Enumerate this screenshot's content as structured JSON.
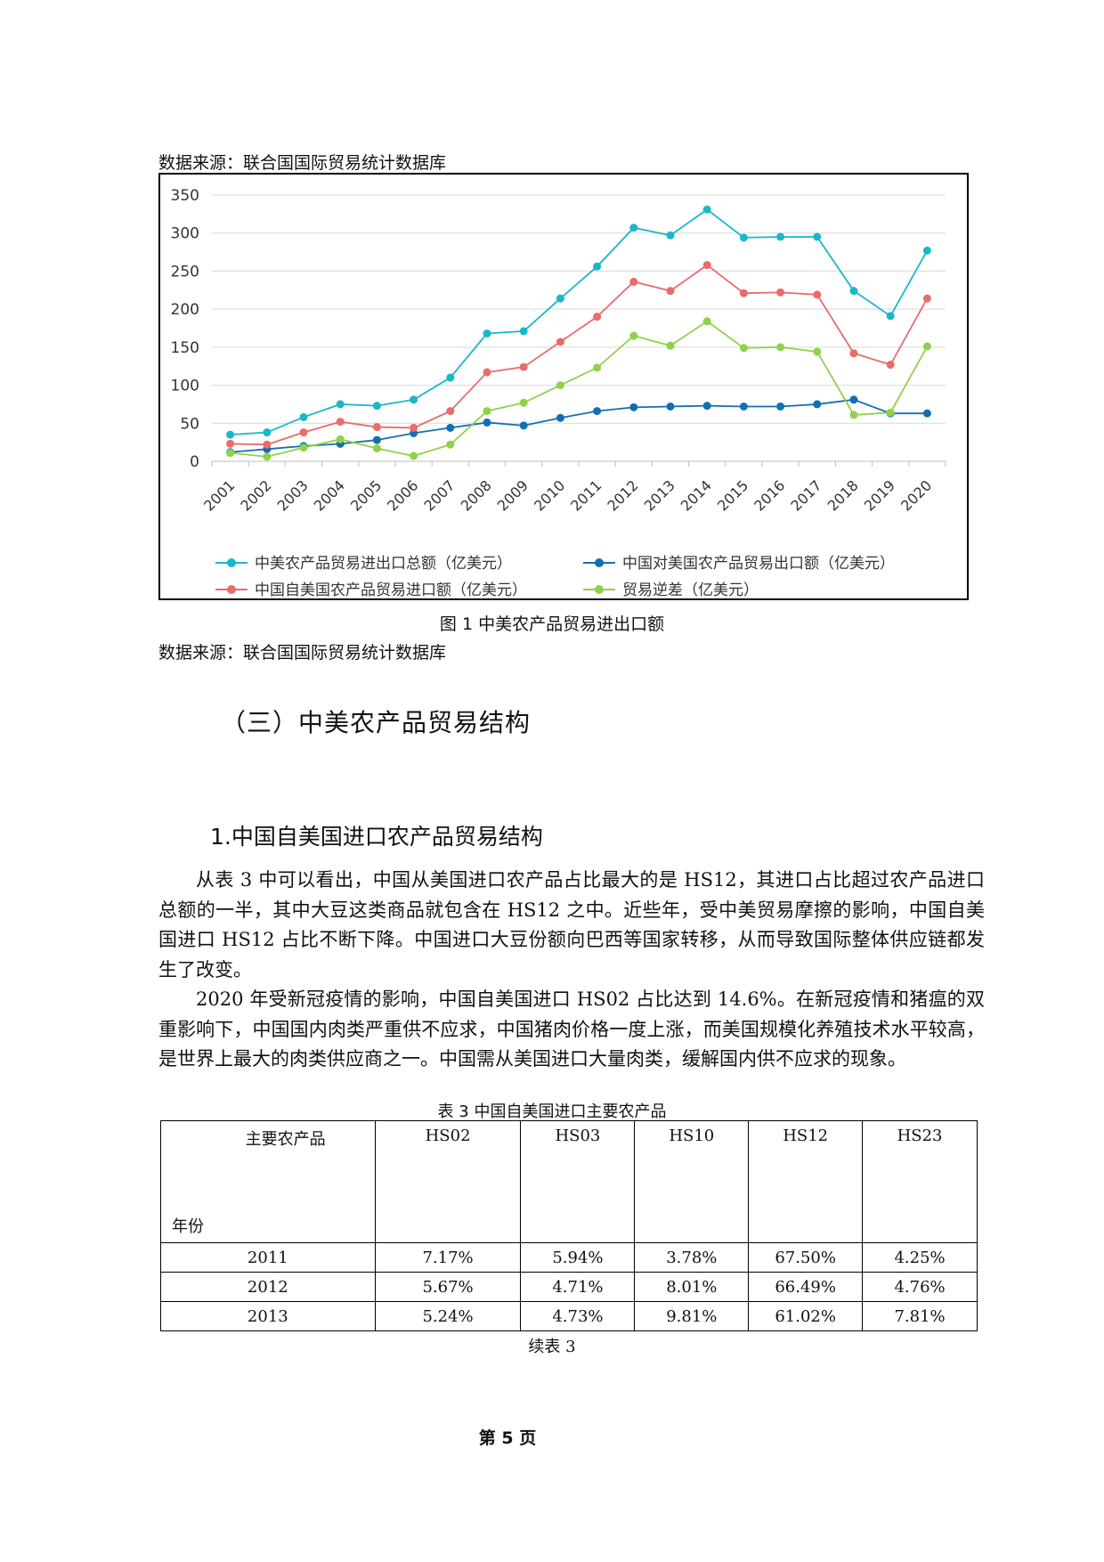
{
  "source_top": "数据来源：联合国国际贸易统计数据库",
  "figure_caption": "图 1 中美农产品贸易进出口额",
  "source_bottom": "数据来源：联合国国际贸易统计数据库",
  "section_heading": "（三）中美农产品贸易结构",
  "subsection_heading": "1.中国自美国进口农产品贸易结构",
  "paragraphs": [
    "从表 3 中可以看出，中国从美国进口农产品占比最大的是 HS12，其进口占比超过农产品进口总额的一半，其中大豆这类商品就包含在 HS12 之中。近些年，受中美贸易摩擦的影响，中国自美国进口 HS12 占比不断下降。中国进口大豆份额向巴西等国家转移，从而导致国际整体供应链都发生了改变。",
    "2020 年受新冠疫情的影响，中国自美国进口 HS02 占比达到 14.6%。在新冠疫情和猪瘟的双重影响下，中国国内肉类严重供不应求，中国猪肉价格一度上涨，而美国规模化养殖技术水平较高，是世界上最大的肉类供应商之一。中国需从美国进口大量肉类，缓解国内供不应求的现象。"
  ],
  "table_caption": "表 3 中国自美国进口主要农产品",
  "table": {
    "header_top": "主要农产品",
    "header_bottom": "年份",
    "columns": [
      "HS02",
      "HS03",
      "HS10",
      "HS12",
      "HS23"
    ],
    "rows": [
      {
        "year": "2011",
        "values": [
          "7.17%",
          "5.94%",
          "3.78%",
          "67.50%",
          "4.25%"
        ]
      },
      {
        "year": "2012",
        "values": [
          "5.67%",
          "4.71%",
          "8.01%",
          "66.49%",
          "4.76%"
        ]
      },
      {
        "year": "2013",
        "values": [
          "5.24%",
          "4.73%",
          "9.81%",
          "61.02%",
          "7.81%"
        ]
      }
    ]
  },
  "table_continued": "续表 3",
  "page_number": "第 5 页",
  "chart_data": {
    "type": "line",
    "x": [
      "2001",
      "2002",
      "2003",
      "2004",
      "2005",
      "2006",
      "2007",
      "2008",
      "2009",
      "2010",
      "2011",
      "2012",
      "2013",
      "2014",
      "2015",
      "2016",
      "2017",
      "2018",
      "2019",
      "2020"
    ],
    "ylim": [
      0,
      350
    ],
    "yticks": [
      "0",
      "50",
      "100",
      "150",
      "200",
      "250",
      "300",
      "350"
    ],
    "grid": true,
    "legend_position": "bottom",
    "series": [
      {
        "name": "中美农产品贸易进出口总额（亿美元）",
        "color": "#1ab7c9",
        "values": [
          35,
          38,
          58,
          75,
          73,
          81,
          110,
          168,
          171,
          214,
          256,
          307,
          297,
          331,
          294,
          295,
          295,
          224,
          191,
          277
        ]
      },
      {
        "name": "中国对美国农产品贸易出口额（亿美元）",
        "color": "#1170b0",
        "values": [
          12,
          16,
          20,
          23,
          28,
          37,
          44,
          51,
          47,
          57,
          66,
          71,
          72,
          73,
          72,
          72,
          75,
          81,
          63,
          63
        ]
      },
      {
        "name": "中国自美国农产品贸易进口额（亿美元）",
        "color": "#e96b6b",
        "values": [
          23,
          22,
          38,
          52,
          45,
          44,
          66,
          117,
          124,
          157,
          190,
          236,
          224,
          258,
          221,
          222,
          219,
          142,
          127,
          214
        ]
      },
      {
        "name": "贸易逆差（亿美元）",
        "color": "#8fd14b",
        "values": [
          11,
          6,
          18,
          29,
          17,
          7,
          22,
          66,
          77,
          100,
          123,
          165,
          152,
          184,
          149,
          150,
          144,
          61,
          64,
          151
        ]
      }
    ]
  }
}
